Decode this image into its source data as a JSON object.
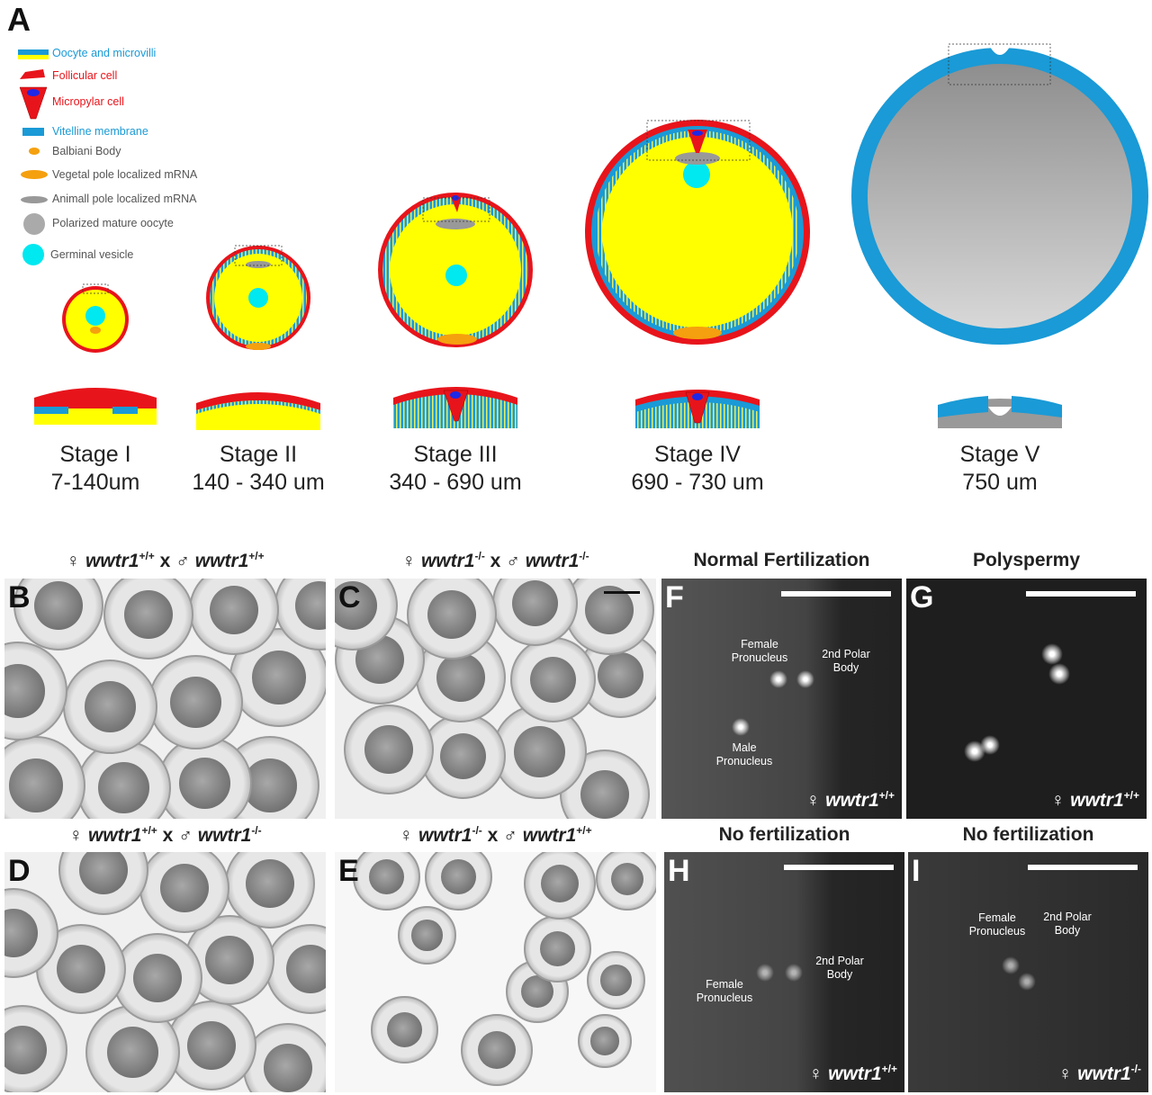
{
  "panel_a": {
    "letter": "A",
    "legend": [
      {
        "label": "Oocyte and microvilli",
        "color": "#1a9ad6"
      },
      {
        "label": "Follicular cell",
        "color": "#e8141b"
      },
      {
        "label": "Micropylar cell",
        "color": "#e8141b"
      },
      {
        "label": "Vitelline membrane",
        "color": "#1a9ad6"
      },
      {
        "label": "Balbiani Body",
        "color": "#555555"
      },
      {
        "label": "Vegetal pole localized mRNA",
        "color": "#555555"
      },
      {
        "label": "Animall pole localized mRNA",
        "color": "#555555"
      },
      {
        "label": "Polarized mature oocyte",
        "color": "#555555"
      },
      {
        "label": "Germinal vesicle",
        "color": "#555555"
      }
    ],
    "stages": [
      {
        "name": "Stage I",
        "size": "7-140um"
      },
      {
        "name": "Stage II",
        "size": "140 - 340 um"
      },
      {
        "name": "Stage III",
        "size": "340 - 690 um"
      },
      {
        "name": "Stage IV",
        "size": "690 - 730 um"
      },
      {
        "name": "Stage V",
        "size": "750 um"
      }
    ],
    "colors": {
      "yolk": "#ffff00",
      "follicle": "#e8141b",
      "vitelline": "#1a9ad6",
      "germinal_vesicle": "#00e8f0",
      "vegetal": "#f5a00e",
      "animal": "#999999"
    }
  },
  "crosses": {
    "B": {
      "letter": "B",
      "female": "wwtr1",
      "female_sup": "+/+",
      "x": "x",
      "male": "wwtr1",
      "male_sup": "+/+"
    },
    "C": {
      "letter": "C",
      "female": "wwtr1",
      "female_sup": "-/-",
      "x": "x",
      "male": "wwtr1",
      "male_sup": "-/-"
    },
    "D": {
      "letter": "D",
      "female": "wwtr1",
      "female_sup": "+/+",
      "x": "x",
      "male": "wwtr1",
      "male_sup": "-/-"
    },
    "E": {
      "letter": "E",
      "female": "wwtr1",
      "female_sup": "-/-",
      "x": "x",
      "male": "wwtr1",
      "male_sup": "+/+"
    }
  },
  "fluorescence": {
    "F": {
      "letter": "F",
      "title": "Normal Fertilization",
      "female": "wwtr1",
      "sup": "+/+",
      "labels": [
        "Female Pronucleus",
        "2nd  Polar Body",
        "Male Pronucleus"
      ]
    },
    "G": {
      "letter": "G",
      "title": "Polyspermy",
      "female": "wwtr1",
      "sup": "+/+",
      "labels": []
    },
    "H": {
      "letter": "H",
      "title": "No fertilization",
      "female": "wwtr1",
      "sup": "+/+",
      "labels": [
        "2nd  Polar Body",
        "Female Pronucleus"
      ]
    },
    "I": {
      "letter": "I",
      "title": "No fertilization",
      "female": "wwtr1",
      "sup": "-/-",
      "labels": [
        "Female Pronucleus",
        "2nd  Polar Body"
      ]
    }
  },
  "symbols": {
    "female": "♀",
    "male": "♂"
  }
}
